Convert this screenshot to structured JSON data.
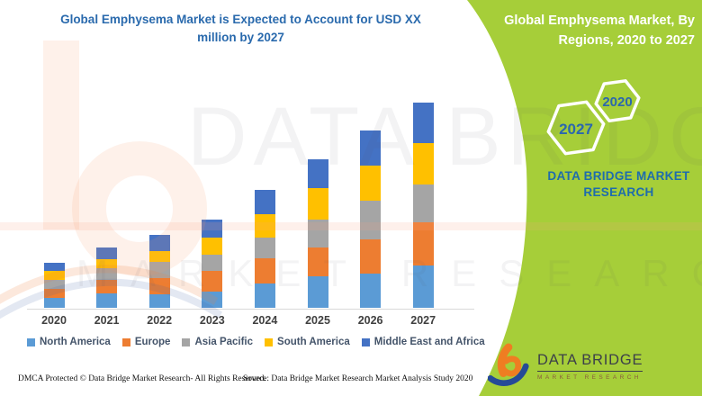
{
  "header": {
    "title_line1": "Global Emphysema Market is Expected to Account for USD XX",
    "title_line2": "million by 2027",
    "title_color": "#2A6AAD"
  },
  "chart_data": {
    "type": "bar",
    "stacked": true,
    "title": "Global Emphysema Market is Expected to Account for USD XX million by 2027",
    "categories": [
      "2020",
      "2021",
      "2022",
      "2023",
      "2024",
      "2025",
      "2026",
      "2027"
    ],
    "series": [
      {
        "name": "North America",
        "color": "#5B9BD5",
        "values": [
          11,
          16,
          15,
          18,
          27,
          35,
          38,
          47
        ]
      },
      {
        "name": "Europe",
        "color": "#ED7D31",
        "values": [
          10,
          15,
          18,
          23,
          28,
          32,
          38,
          48
        ]
      },
      {
        "name": "Asia Pacific",
        "color": "#A5A5A5",
        "values": [
          10,
          13,
          18,
          18,
          23,
          31,
          43,
          42
        ]
      },
      {
        "name": "South America",
        "color": "#FFC000",
        "values": [
          10,
          10,
          12,
          19,
          26,
          35,
          39,
          46
        ]
      },
      {
        "name": "Middle East and Africa",
        "color": "#4472C4",
        "values": [
          9,
          13,
          18,
          20,
          27,
          32,
          39,
          45
        ]
      }
    ],
    "xlabel": "",
    "ylabel": "",
    "y_axis_visible": false,
    "value_units": "relative height units (no y-axis values shown; actual values stated as USD XX million)",
    "legend_position": "bottom",
    "grid": false
  },
  "side_panel": {
    "heading": "Global Emphysema Market, By Regions, 2020 to 2027",
    "bg_color": "#A6CE39",
    "hexagons": [
      {
        "label": "2027"
      },
      {
        "label": "2020"
      }
    ],
    "hex_label_color": "#2B67AE",
    "brand_line1": "DATA BRIDGE MARKET",
    "brand_line2": "RESEARCH",
    "brand_text_color": "#1E6CAD"
  },
  "logo": {
    "name": "DATA BRIDGE",
    "subtitle": "MARKET RESEARCH",
    "mark_orange": "#EF7D22",
    "mark_blue": "#264A97"
  },
  "footer": {
    "dmca": "DMCA Protected © Data Bridge Market Research- All Rights Reserved.",
    "source": "Source: Data Bridge Market Research Market Analysis Study 2020"
  },
  "watermark": {
    "line1": "DATA BRIDGE",
    "line2": "MARKET RESEARCH"
  }
}
